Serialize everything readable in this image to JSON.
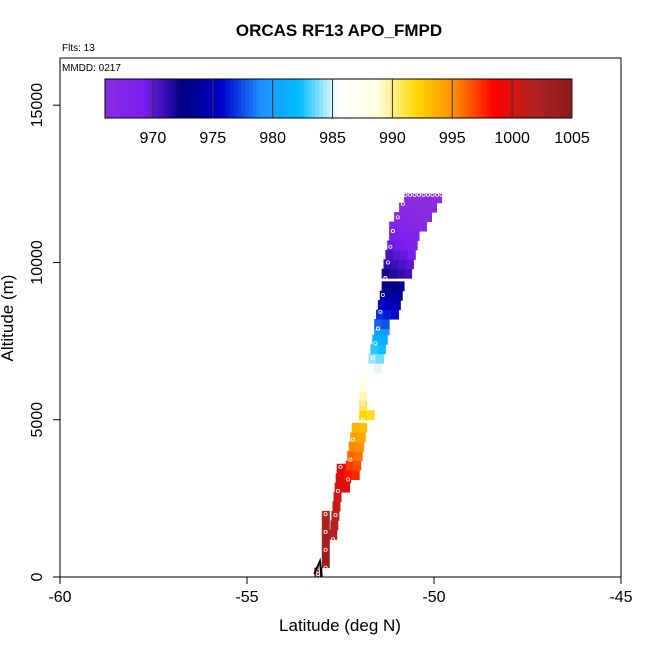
{
  "chart_data": {
    "type": "heatmap",
    "title": "ORCAS RF13 APO_FMPD",
    "flights_note": "Flts: 13",
    "date_note": "MMDD: 0217",
    "xlabel": "Latitude (deg N)",
    "ylabel": "Altitude (m)",
    "xlim": [
      -60,
      -45
    ],
    "ylim": [
      0,
      16500
    ],
    "xticks": [
      -60,
      -55,
      -50,
      -45
    ],
    "yticks": [
      0,
      5000,
      10000,
      15000
    ],
    "colorbar": {
      "range": [
        966,
        1005
      ],
      "ticks": [
        970,
        975,
        980,
        985,
        990,
        995,
        1000,
        1005
      ],
      "stops": [
        "#8a2be2",
        "#7a1ef0",
        "#000080",
        "#0000cd",
        "#1e90ff",
        "#00bfff",
        "#ffffff",
        "#ffffe0",
        "#ffd700",
        "#ff8c00",
        "#ff0000",
        "#b22222",
        "#8b1a1a"
      ],
      "placement": "top"
    },
    "cell_size": {
      "lat": 0.2,
      "alt": 300
    },
    "profile_segments": [
      {
        "alt": [
          0,
          300
        ],
        "lat": [
          -53.2,
          -53.2
        ],
        "val": [
          1005,
          1005
        ]
      },
      {
        "alt": [
          300,
          2000
        ],
        "lat": [
          -53.0,
          -53.0
        ],
        "val": [
          1003.5,
          1002
        ]
      },
      {
        "alt": [
          1200,
          3500
        ],
        "lat": [
          -52.8,
          -52.6
        ],
        "val": [
          1002,
          999.5
        ]
      },
      {
        "alt": [
          3100,
          5000
        ],
        "lat": [
          -52.4,
          -52.2
        ],
        "val": [
          998,
          993.5
        ]
      },
      {
        "alt": [
          5000,
          6500
        ],
        "lat": [
          -52.0,
          -52.0
        ],
        "val": [
          992,
          987
        ]
      },
      {
        "alt": [
          6500,
          7900
        ],
        "lat": [
          -51.8,
          -51.6
        ],
        "val": [
          985.5,
          980
        ]
      },
      {
        "alt": [
          7900,
          9500
        ],
        "lat": [
          -51.6,
          -51.4
        ],
        "val": [
          978,
          973
        ]
      },
      {
        "alt": [
          9500,
          11000
        ],
        "lat": [
          -51.4,
          -51.2
        ],
        "val": [
          972,
          969
        ]
      },
      {
        "alt": [
          11000,
          12300
        ],
        "lat": [
          -51.2,
          -50.8
        ],
        "val": [
          968,
          966
        ]
      }
    ],
    "grid": false
  }
}
